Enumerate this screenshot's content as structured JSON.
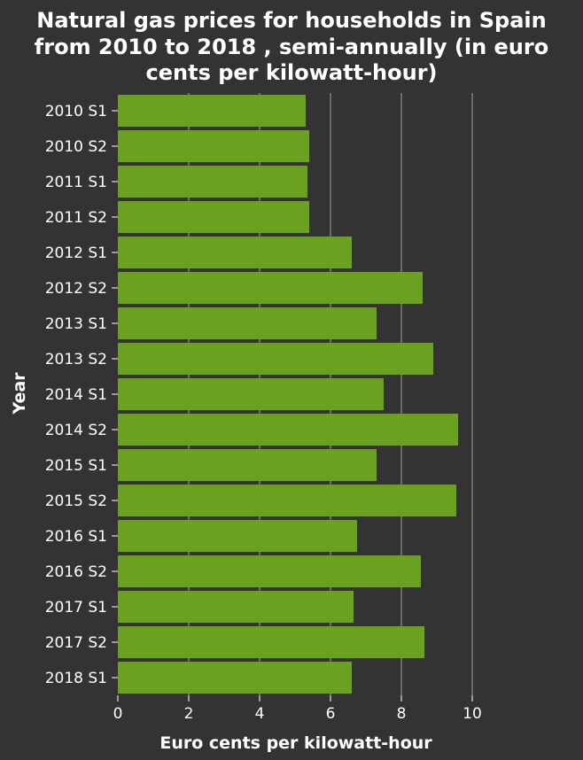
{
  "chart_data": {
    "type": "bar",
    "orientation": "horizontal",
    "title_lines": [
      "Natural gas prices for households in Spain",
      "from 2010 to 2018 , semi-annually (in euro",
      "cents per kilowatt-hour)"
    ],
    "xlabel": "Euro cents per kilowatt-hour",
    "ylabel": "Year",
    "xlim": [
      0,
      10
    ],
    "xticks": [
      "0",
      "2",
      "4",
      "6",
      "8",
      "10"
    ],
    "grid": "vertical",
    "categories": [
      "2010 S1",
      "2010 S2",
      "2011 S1",
      "2011 S2",
      "2012 S1",
      "2012 S2",
      "2013 S1",
      "2013 S2",
      "2014 S1",
      "2014 S2",
      "2015 S1",
      "2015 S2",
      "2016 S1",
      "2016 S2",
      "2017 S1",
      "2017 S2",
      "2018 S1"
    ],
    "values": [
      5.3,
      5.4,
      5.35,
      5.4,
      6.6,
      8.6,
      7.3,
      8.9,
      7.5,
      9.6,
      7.3,
      9.55,
      6.75,
      8.55,
      6.65,
      8.65,
      6.6
    ],
    "colors": {
      "bar": "#6aa121",
      "background": "#333333",
      "grid": "#a0a0a0",
      "text": "#ffffff"
    }
  }
}
